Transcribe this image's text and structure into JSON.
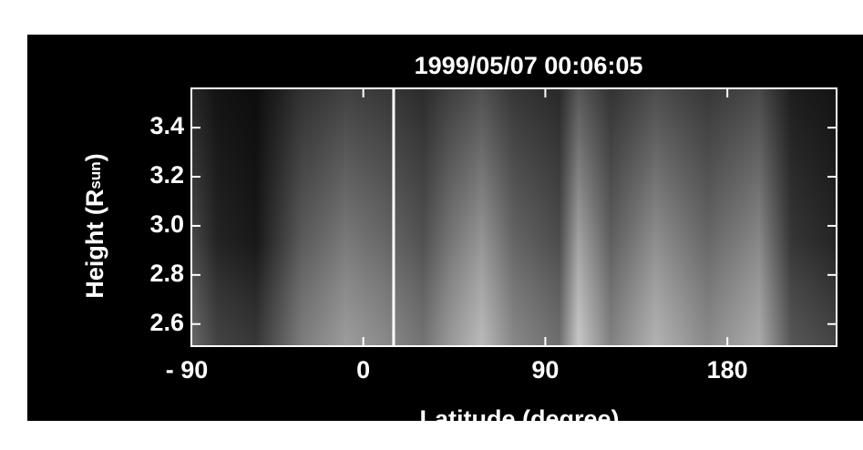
{
  "chart_data": {
    "type": "image",
    "title": "1999/05/07 00:06:05",
    "x_label": "Latitude (degree)",
    "y_label": {
      "main": "Height (R",
      "sub": "sun",
      "end": ")"
    },
    "xlim": [
      -85,
      234
    ],
    "xticks": [
      {
        "value": -90,
        "label": "- 90"
      },
      0,
      90,
      180
    ],
    "ylim": [
      2.51,
      3.56
    ],
    "yticks": [
      2.6,
      2.8,
      {
        "value": 3,
        "label": "3.0"
      },
      3.2,
      3.4
    ],
    "vline": 15
  }
}
